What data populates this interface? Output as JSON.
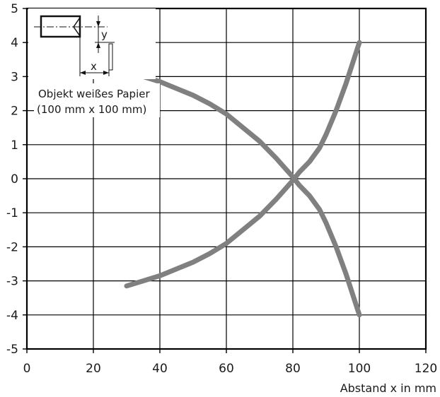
{
  "chart_data": {
    "type": "line",
    "title": "",
    "xlabel": "Abstand x in mm",
    "ylabel": "",
    "xlim": [
      0,
      120
    ],
    "ylim": [
      -5,
      5
    ],
    "xticks": [
      0,
      20,
      40,
      60,
      80,
      100,
      120
    ],
    "yticks": [
      5,
      4,
      3,
      2,
      1,
      0,
      -1,
      -2,
      -3,
      -4,
      -5
    ],
    "grid": true,
    "line_color": "#808080",
    "series": [
      {
        "x": [
          30,
          40,
          50,
          55,
          60,
          65,
          70,
          75,
          80,
          82,
          85,
          88,
          90,
          93,
          96,
          100
        ],
        "y": [
          3.15,
          2.85,
          2.45,
          2.2,
          1.9,
          1.5,
          1.1,
          0.6,
          0.05,
          -0.2,
          -0.5,
          -0.9,
          -1.3,
          -2.0,
          -2.8,
          -4.0
        ]
      },
      {
        "x": [
          30,
          40,
          50,
          55,
          60,
          65,
          70,
          75,
          80,
          82,
          85,
          88,
          90,
          93,
          96,
          100
        ],
        "y": [
          -3.15,
          -2.85,
          -2.45,
          -2.2,
          -1.9,
          -1.5,
          -1.1,
          -0.6,
          -0.05,
          0.2,
          0.5,
          0.9,
          1.3,
          2.0,
          2.8,
          4.0
        ]
      }
    ],
    "inset": {
      "label_y": "y",
      "label_x": "x",
      "caption_line1": "Objekt weißes Papier",
      "caption_line2": "(100 mm x 100 mm)"
    }
  }
}
